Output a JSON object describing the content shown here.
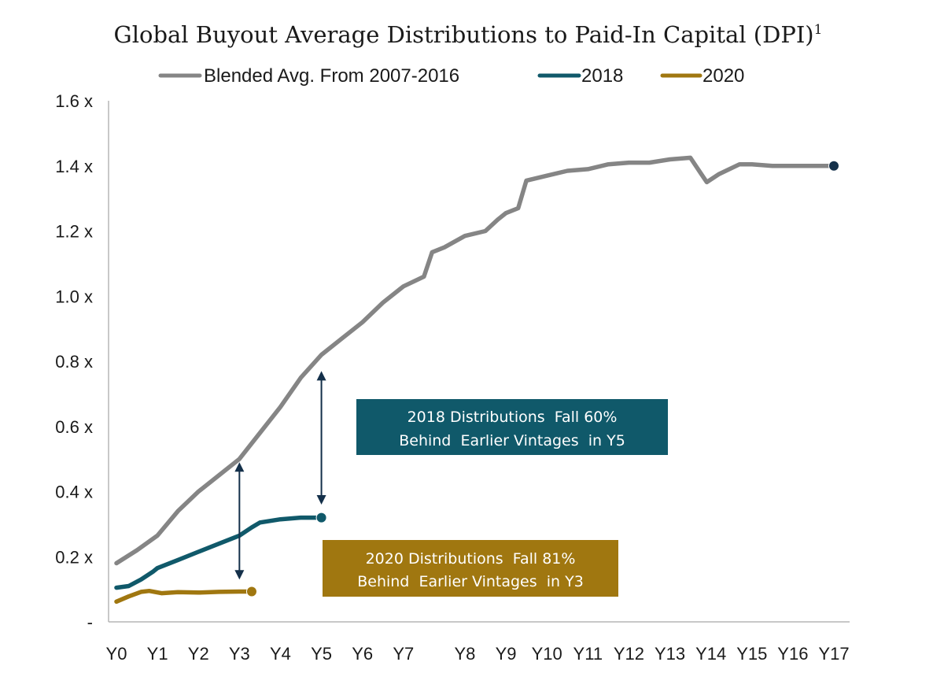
{
  "chart_data": {
    "type": "line",
    "title": "Global Buyout Average Distributions to Paid-In Capital (DPI)",
    "title_superscript": "1",
    "legend_position": "top",
    "grid": false,
    "y_tick_labels": [
      "-",
      "0.2 x",
      "0.4 x",
      "0.6 x",
      "0.8 x",
      "1.0 x",
      "1.2 x",
      "1.4 x",
      "1.6 x"
    ],
    "y_tick_values": [
      0,
      0.2,
      0.4,
      0.6,
      0.8,
      1.0,
      1.2,
      1.4,
      1.6
    ],
    "ylim": [
      0,
      1.6
    ],
    "xlim": [
      0,
      17
    ],
    "x_ticks": [
      {
        "label": "Y0",
        "value": 0.0
      },
      {
        "label": "Y1",
        "value": 0.5
      },
      {
        "label": "Y2",
        "value": 1.0
      },
      {
        "label": "Y3",
        "value": 1.5
      },
      {
        "label": "Y4",
        "value": 2.0
      },
      {
        "label": "Y5",
        "value": 2.5
      },
      {
        "label": "Y6",
        "value": 3.0
      },
      {
        "label": "Y7",
        "value": 3.5
      },
      {
        "label": "Y8",
        "value": 4.25
      },
      {
        "label": "Y9",
        "value": 4.75
      },
      {
        "label": "Y10",
        "value": 5.25
      },
      {
        "label": "Y11",
        "value": 5.75
      },
      {
        "label": "Y12",
        "value": 6.25
      },
      {
        "label": "Y13",
        "value": 6.75
      },
      {
        "label": "Y14",
        "value": 7.25
      },
      {
        "label": "Y15",
        "value": 7.75
      },
      {
        "label": "Y16",
        "value": 8.25
      },
      {
        "label": "Y17",
        "value": 8.75
      }
    ],
    "series": [
      {
        "name": "Blended Avg. From 2007-2016",
        "color": "#858585",
        "end_marker": true,
        "end_marker_color": "#14304a",
        "points": [
          [
            0.0,
            0.18
          ],
          [
            0.25,
            0.22
          ],
          [
            0.5,
            0.265
          ],
          [
            0.75,
            0.34
          ],
          [
            1.0,
            0.4
          ],
          [
            1.25,
            0.45
          ],
          [
            1.5,
            0.5
          ],
          [
            1.75,
            0.58
          ],
          [
            2.0,
            0.66
          ],
          [
            2.25,
            0.75
          ],
          [
            2.5,
            0.82
          ],
          [
            2.75,
            0.87
          ],
          [
            3.0,
            0.92
          ],
          [
            3.25,
            0.98
          ],
          [
            3.5,
            1.03
          ],
          [
            3.75,
            1.06
          ],
          [
            3.85,
            1.135
          ],
          [
            4.0,
            1.15
          ],
          [
            4.25,
            1.185
          ],
          [
            4.5,
            1.2
          ],
          [
            4.65,
            1.235
          ],
          [
            4.75,
            1.255
          ],
          [
            4.9,
            1.27
          ],
          [
            5.0,
            1.355
          ],
          [
            5.25,
            1.37
          ],
          [
            5.5,
            1.385
          ],
          [
            5.75,
            1.39
          ],
          [
            6.0,
            1.405
          ],
          [
            6.25,
            1.41
          ],
          [
            6.5,
            1.41
          ],
          [
            6.75,
            1.42
          ],
          [
            7.0,
            1.425
          ],
          [
            7.2,
            1.35
          ],
          [
            7.35,
            1.375
          ],
          [
            7.6,
            1.405
          ],
          [
            7.75,
            1.405
          ],
          [
            8.0,
            1.4
          ],
          [
            8.25,
            1.4
          ],
          [
            8.5,
            1.4
          ],
          [
            8.75,
            1.4
          ]
        ]
      },
      {
        "name": "2018",
        "color": "#10596a",
        "end_marker": true,
        "end_marker_color": "#10596a",
        "points": [
          [
            0.0,
            0.105
          ],
          [
            0.15,
            0.11
          ],
          [
            0.3,
            0.13
          ],
          [
            0.45,
            0.155
          ],
          [
            0.5,
            0.165
          ],
          [
            0.75,
            0.19
          ],
          [
            1.0,
            0.215
          ],
          [
            1.25,
            0.24
          ],
          [
            1.5,
            0.265
          ],
          [
            1.65,
            0.29
          ],
          [
            1.75,
            0.305
          ],
          [
            2.0,
            0.315
          ],
          [
            2.25,
            0.32
          ],
          [
            2.5,
            0.32
          ]
        ]
      },
      {
        "name": "2020",
        "color": "#a07710",
        "end_marker": true,
        "end_marker_color": "#a07710",
        "points": [
          [
            0.0,
            0.062
          ],
          [
            0.15,
            0.078
          ],
          [
            0.3,
            0.092
          ],
          [
            0.4,
            0.095
          ],
          [
            0.55,
            0.088
          ],
          [
            0.75,
            0.091
          ],
          [
            1.0,
            0.09
          ],
          [
            1.25,
            0.092
          ],
          [
            1.5,
            0.093
          ],
          [
            1.65,
            0.093
          ]
        ]
      }
    ],
    "arrows": [
      {
        "x": 1.5,
        "y_top": 0.49,
        "y_bottom": 0.13,
        "color": "#14304a"
      },
      {
        "x": 2.5,
        "y_top": 0.77,
        "y_bottom": 0.36,
        "color": "#14304a"
      }
    ],
    "annotations": [
      {
        "lines": [
          "2018 Distributions  Fall 60%",
          "Behind  Earlier Vintages  in Y5"
        ],
        "bg": "#10596a"
      },
      {
        "lines": [
          "2020 Distributions  Fall 81%",
          "Behind  Earlier Vintages  in Y3"
        ],
        "bg": "#a07710"
      }
    ]
  }
}
